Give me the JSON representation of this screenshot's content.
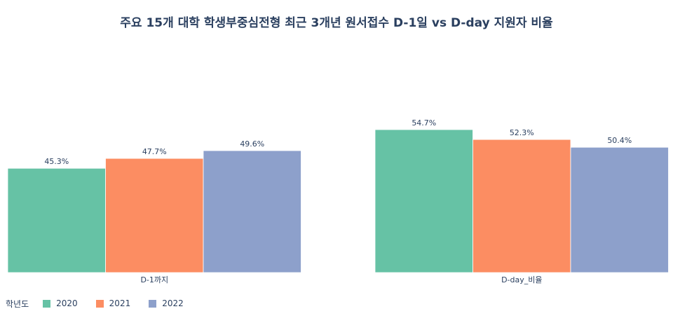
{
  "chart_data": {
    "type": "bar",
    "title": "주요 15개 대학 학생부중심전형 최근 3개년 원서접수 D-1일 vs D-day 지원자 비율",
    "categories": [
      "D-1까지",
      "D-day_비율"
    ],
    "series": [
      {
        "name": "2020",
        "color": "#66c2a5",
        "values": [
          45.3,
          54.7
        ],
        "labels": [
          "45.3%",
          "54.7%"
        ]
      },
      {
        "name": "2021",
        "color": "#fc8d62",
        "values": [
          47.7,
          52.3
        ],
        "labels": [
          "47.7%",
          "52.3%"
        ]
      },
      {
        "name": "2022",
        "color": "#8da0cb",
        "values": [
          49.6,
          50.4
        ],
        "labels": [
          "49.6%",
          "50.4%"
        ]
      }
    ],
    "legend_title": "학년도",
    "legend_position": "bottom-left",
    "ylim": [
      20,
      57
    ],
    "grid": false
  }
}
